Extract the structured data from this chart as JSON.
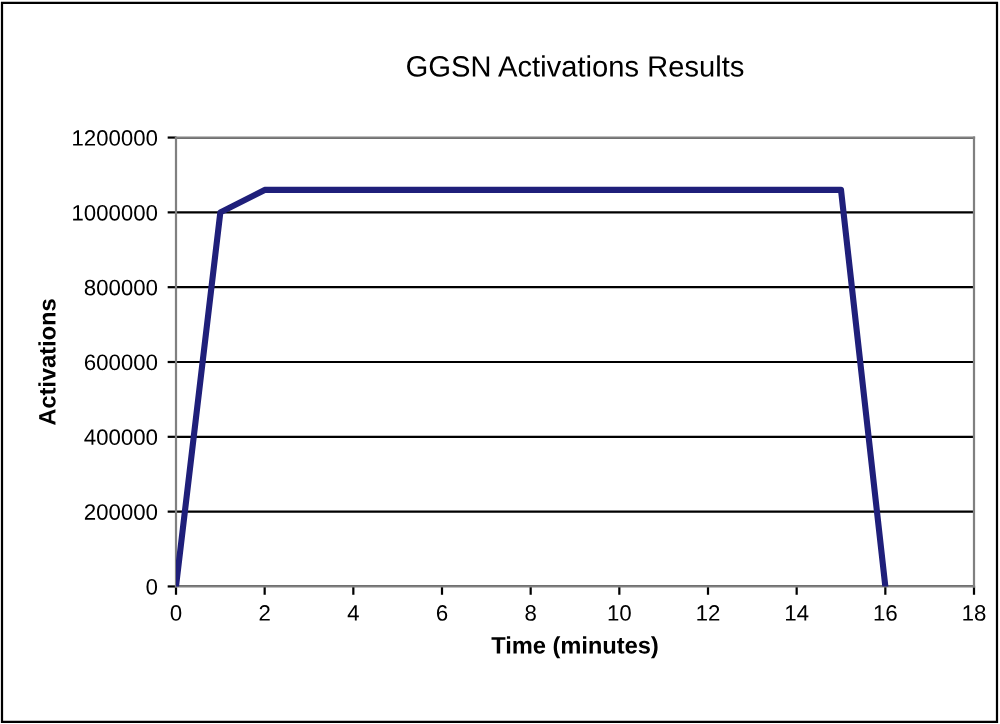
{
  "chart_data": {
    "type": "line",
    "title": "GGSN Activations Results",
    "xlabel": "Time (minutes)",
    "ylabel": "Activations",
    "x": [
      0,
      1,
      2,
      15,
      16
    ],
    "series": [
      {
        "color": "#1f1f7a",
        "values": [
          0,
          1000000,
          1060000,
          1060000,
          0
        ]
      }
    ],
    "xlim": [
      0,
      18
    ],
    "xticks": [
      0,
      2,
      4,
      6,
      8,
      10,
      12,
      14,
      16,
      18
    ],
    "ylim": [
      0,
      1200000
    ],
    "yticks": [
      0,
      200000,
      400000,
      600000,
      800000,
      1000000,
      1200000
    ],
    "grid": "y",
    "legend": false,
    "marker": "none",
    "line_style": "solid"
  }
}
